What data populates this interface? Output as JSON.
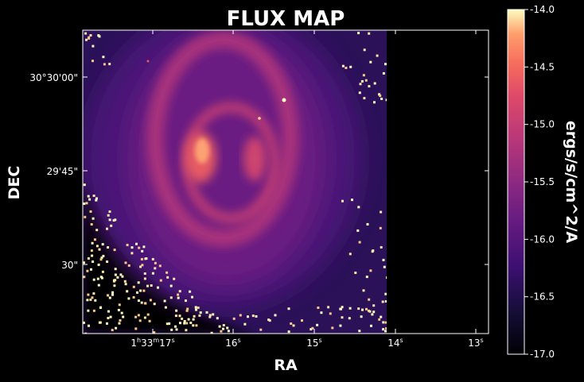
{
  "chart_data": {
    "type": "heatmap",
    "title": "FLUX MAP",
    "xlabel": "RA",
    "ylabel": "DEC",
    "x_ticks": [
      {
        "label": "1h33m17s",
        "main": "1",
        "sup1": "h",
        "mid": "33",
        "sup2": "m",
        "end": "17",
        "sup3": "s"
      },
      {
        "label": "16s",
        "main": "16",
        "sup": "s"
      },
      {
        "label": "15s",
        "main": "15",
        "sup": "s"
      },
      {
        "label": "14s",
        "main": "14",
        "sup": "s"
      },
      {
        "label": "13s",
        "main": "13",
        "sup": "s"
      }
    ],
    "y_ticks": [
      "30°30'00\"",
      "29'45\"",
      "30\""
    ],
    "colorbar": {
      "label": "ergs/s/cm^2/A",
      "min": -17.0,
      "max": -14.0,
      "ticks": [
        "-14.0",
        "-14.5",
        "-15.0",
        "-15.5",
        "-16.0",
        "-16.5",
        "-17.0"
      ],
      "tick_values": [
        -14.0,
        -14.5,
        -15.0,
        -15.5,
        -16.0,
        -16.5,
        -17.0
      ],
      "colormap": "magma"
    },
    "colors": {
      "background": "#000000",
      "frame": "#ffffff",
      "text": "#ffffff"
    }
  }
}
